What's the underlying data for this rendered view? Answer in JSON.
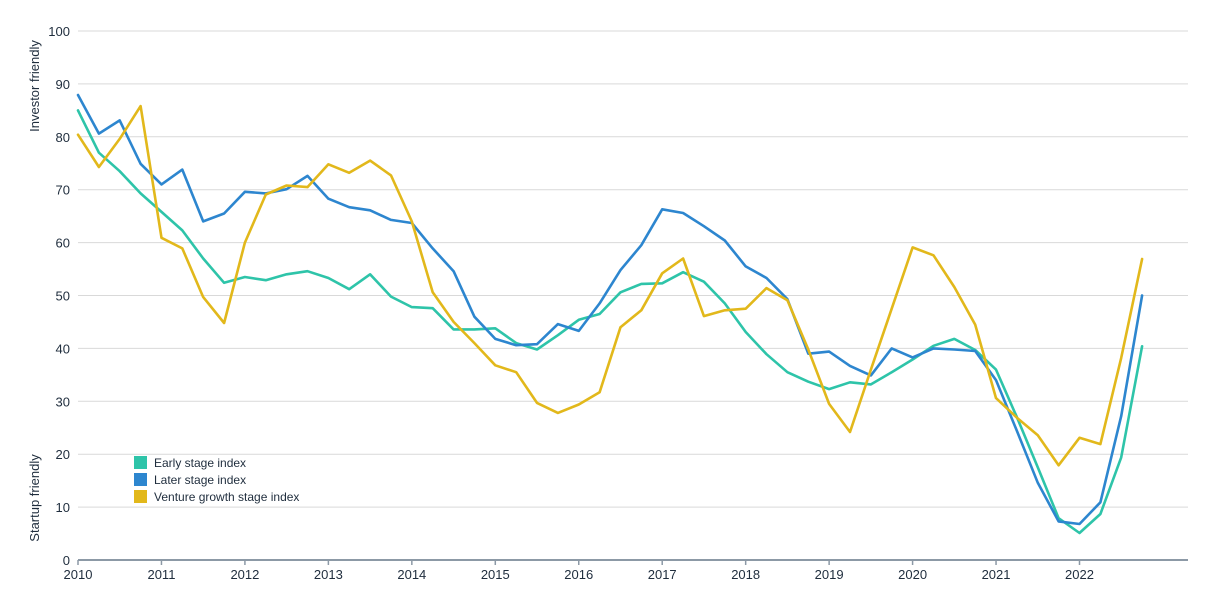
{
  "chart_data": {
    "type": "line",
    "title": "",
    "xlabel": "",
    "ylabel": "",
    "y_annotations": {
      "top": "Investor friendly",
      "bottom": "Startup friendly"
    },
    "xlim": [
      2010,
      2023.3
    ],
    "ylim": [
      0,
      100
    ],
    "y_ticks": [
      0,
      10,
      20,
      30,
      40,
      50,
      60,
      70,
      80,
      90,
      100
    ],
    "x_ticks": [
      "2010",
      "2011",
      "2012",
      "2013",
      "2014",
      "2015",
      "2016",
      "2017",
      "2018",
      "2019",
      "2020",
      "2021",
      "2022"
    ],
    "grid": true,
    "legend_position": "bottom-left",
    "x": [
      2010.0,
      2010.25,
      2010.5,
      2010.75,
      2011.0,
      2011.25,
      2011.5,
      2011.75,
      2012.0,
      2012.25,
      2012.5,
      2012.75,
      2013.0,
      2013.25,
      2013.5,
      2013.75,
      2014.0,
      2014.25,
      2014.5,
      2014.75,
      2015.0,
      2015.25,
      2015.5,
      2015.75,
      2016.0,
      2016.25,
      2016.5,
      2016.75,
      2017.0,
      2017.25,
      2017.5,
      2017.75,
      2018.0,
      2018.25,
      2018.5,
      2018.75,
      2019.0,
      2019.25,
      2019.5,
      2019.75,
      2020.0,
      2020.25,
      2020.5,
      2020.75,
      2021.0,
      2021.25,
      2021.5,
      2021.75,
      2022.0,
      2022.25,
      2022.5,
      2022.75
    ],
    "series": [
      {
        "name": "Early stage index",
        "color": "#2ec4a9",
        "values": [
          85.0,
          77.0,
          73.5,
          69.3,
          65.8,
          62.3,
          57.0,
          52.4,
          53.5,
          52.9,
          54.0,
          54.6,
          53.3,
          51.2,
          54.0,
          49.8,
          47.8,
          47.6,
          43.6,
          43.6,
          43.8,
          41.0,
          39.8,
          42.5,
          45.4,
          46.5,
          50.6,
          52.2,
          52.3,
          54.4,
          52.6,
          48.5,
          43.1,
          38.9,
          35.5,
          33.7,
          32.3,
          33.6,
          33.2,
          35.5,
          37.9,
          40.5,
          41.8,
          39.7,
          36.0,
          27.0,
          17.5,
          7.9,
          5.1,
          8.7,
          19.4,
          40.4
        ]
      },
      {
        "name": "Later stage index",
        "color": "#2d86cf",
        "values": [
          87.9,
          80.6,
          83.1,
          74.9,
          71.0,
          73.8,
          64.0,
          65.5,
          69.6,
          69.3,
          70.1,
          72.6,
          68.3,
          66.7,
          66.1,
          64.3,
          63.7,
          58.9,
          54.6,
          46.0,
          41.8,
          40.6,
          40.8,
          44.6,
          43.3,
          48.5,
          54.8,
          59.5,
          66.3,
          65.6,
          63.1,
          60.4,
          55.5,
          53.3,
          49.3,
          39.0,
          39.4,
          36.7,
          34.9,
          40.0,
          38.3,
          40.0,
          39.8,
          39.5,
          34.0,
          24.4,
          14.6,
          7.3,
          6.8,
          10.9,
          27.2,
          50.0
        ]
      },
      {
        "name": "Venture growth stage index",
        "color": "#e2b81b",
        "values": [
          80.4,
          74.3,
          79.6,
          85.8,
          60.9,
          58.9,
          49.7,
          44.8,
          60.0,
          69.1,
          70.8,
          70.5,
          74.8,
          73.2,
          75.5,
          72.7,
          64.0,
          50.6,
          45.0,
          41.0,
          36.8,
          35.5,
          29.7,
          27.8,
          29.4,
          31.7,
          44.0,
          47.2,
          54.2,
          57.0,
          46.1,
          47.2,
          47.5,
          51.4,
          49.1,
          39.8,
          29.5,
          24.2,
          36.0,
          47.5,
          59.1,
          57.6,
          51.6,
          44.5,
          30.6,
          26.9,
          23.6,
          17.9,
          23.1,
          21.9,
          38.2,
          56.9
        ]
      }
    ]
  }
}
